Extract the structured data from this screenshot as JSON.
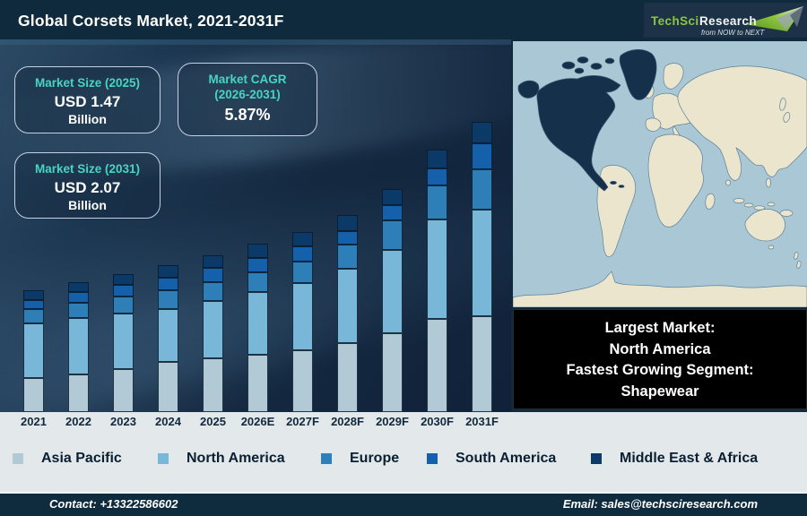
{
  "header": {
    "title": "Global Corsets Market, 2021-2031F",
    "logo": {
      "brand": "TechSci",
      "brand2": "Research",
      "tagline": "from NOW to NEXT"
    }
  },
  "info_boxes": [
    {
      "label": "Market Size (2025)",
      "value": "USD 1.47",
      "unit": "Billion"
    },
    {
      "label": "Market CAGR",
      "label2": "(2026-2031)",
      "value": "5.87%"
    },
    {
      "label": "Market Size (2031)",
      "value": "USD 2.07",
      "unit": "Billion"
    }
  ],
  "chart_data": {
    "type": "bar",
    "stacked": true,
    "title": "Global Corsets Market, 2021-2031F",
    "categories": [
      "2021",
      "2022",
      "2023",
      "2024",
      "2025",
      "2026E",
      "2027F",
      "2028F",
      "2029F",
      "2030F",
      "2031F"
    ],
    "value_axis": "unlabeled (illustrative stacked heights, px)",
    "legend_position": "bottom",
    "series": [
      {
        "name": "Asia Pacific",
        "color": "#b2cad6",
        "values": [
          38,
          42,
          48,
          56,
          60,
          64,
          69,
          77,
          88,
          104,
          107
        ]
      },
      {
        "name": "North America",
        "color": "#79b7d9",
        "values": [
          61,
          63,
          62,
          59,
          64,
          70,
          75,
          83,
          93,
          111,
          119
        ]
      },
      {
        "name": "Europe",
        "color": "#2e7fb8",
        "values": [
          16,
          17,
          19,
          21,
          21,
          22,
          24,
          27,
          33,
          38,
          45
        ]
      },
      {
        "name": "South America",
        "color": "#1560ab",
        "values": [
          10,
          12,
          13,
          14,
          16,
          16,
          17,
          15,
          17,
          19,
          29
        ]
      },
      {
        "name": "Middle East & Africa",
        "color": "#0b3a68",
        "values": [
          11,
          11,
          12,
          14,
          14,
          16,
          16,
          18,
          18,
          21,
          24
        ]
      }
    ],
    "totals_label_2025": "USD 1.47 Billion",
    "totals_label_2031": "USD 2.07 Billion",
    "cagr_label": "5.87%"
  },
  "highlight_box": {
    "lines": [
      "Largest Market:",
      "North America",
      "Fastest Growing Segment:",
      "Shapewear"
    ]
  },
  "footer": {
    "contact": "Contact: +13322586602",
    "email": "Email: sales@techsciresearch.com"
  },
  "colors": {
    "header_bg": "#0e2a3c",
    "chart_bg": "#16293c",
    "strip_bg": "#e3e8ea",
    "accent_teal": "#46d5c0",
    "footer_bg": "#0f2c3e",
    "logo_green": "#8dc63f",
    "map_ocean": "#a9c7d5",
    "map_land": "#ece5cd",
    "map_highlight": "#14304b"
  }
}
